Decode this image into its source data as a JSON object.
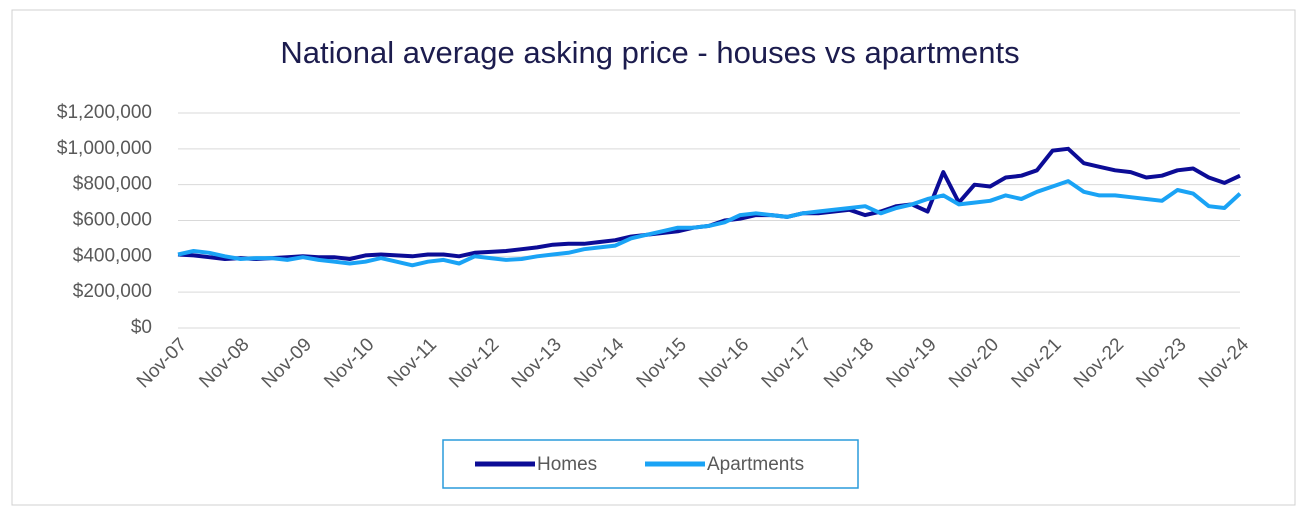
{
  "chart_data": {
    "type": "line",
    "title": "National average asking price - houses vs apartments",
    "categories": [
      "Nov-07",
      null,
      null,
      null,
      "Nov-08",
      null,
      null,
      null,
      "Nov-09",
      null,
      null,
      null,
      "Nov-10",
      null,
      null,
      null,
      "Nov-11",
      null,
      null,
      null,
      "Nov-12",
      null,
      null,
      null,
      "Nov-13",
      null,
      null,
      null,
      "Nov-14",
      null,
      null,
      null,
      "Nov-15",
      null,
      null,
      null,
      "Nov-16",
      null,
      null,
      null,
      "Nov-17",
      null,
      null,
      null,
      "Nov-18",
      null,
      null,
      null,
      "Nov-19",
      null,
      null,
      null,
      "Nov-20",
      null,
      null,
      null,
      "Nov-21",
      null,
      null,
      null,
      "Nov-22",
      null,
      null,
      null,
      "Nov-23",
      null,
      null,
      null,
      "Nov-24"
    ],
    "series": [
      {
        "name": "Homes",
        "color": "#0c0c96",
        "values": [
          410000,
          405000,
          395000,
          385000,
          390000,
          385000,
          390000,
          395000,
          400000,
          395000,
          395000,
          385000,
          405000,
          410000,
          405000,
          400000,
          410000,
          410000,
          400000,
          420000,
          425000,
          430000,
          440000,
          450000,
          465000,
          470000,
          470000,
          480000,
          490000,
          510000,
          520000,
          530000,
          540000,
          560000,
          570000,
          600000,
          610000,
          630000,
          630000,
          620000,
          640000,
          640000,
          650000,
          660000,
          630000,
          650000,
          680000,
          690000,
          650000,
          870000,
          700000,
          800000,
          790000,
          840000,
          850000,
          880000,
          990000,
          1000000,
          920000,
          900000,
          880000,
          870000,
          840000,
          850000,
          880000,
          890000,
          840000,
          810000,
          850000
        ]
      },
      {
        "name": "Apartments",
        "color": "#1aa3f5",
        "values": [
          410000,
          430000,
          420000,
          400000,
          385000,
          390000,
          390000,
          380000,
          395000,
          380000,
          370000,
          360000,
          370000,
          390000,
          370000,
          350000,
          370000,
          380000,
          360000,
          400000,
          390000,
          380000,
          385000,
          400000,
          410000,
          420000,
          440000,
          450000,
          460000,
          500000,
          520000,
          540000,
          560000,
          560000,
          570000,
          590000,
          630000,
          640000,
          630000,
          620000,
          640000,
          650000,
          660000,
          670000,
          680000,
          640000,
          670000,
          690000,
          720000,
          740000,
          690000,
          700000,
          710000,
          740000,
          720000,
          760000,
          790000,
          820000,
          760000,
          740000,
          740000,
          730000,
          720000,
          710000,
          770000,
          750000,
          680000,
          670000,
          750000
        ]
      }
    ],
    "ylim": [
      0,
      1200000
    ],
    "yticks": [
      {
        "value": 0,
        "label": "$0"
      },
      {
        "value": 200000,
        "label": "$200,000"
      },
      {
        "value": 400000,
        "label": "$400,000"
      },
      {
        "value": 600000,
        "label": "$600,000"
      },
      {
        "value": 800000,
        "label": "$800,000"
      },
      {
        "value": 1000000,
        "label": "$1,000,000"
      },
      {
        "value": 1200000,
        "label": "$1,200,000"
      }
    ],
    "grid": true,
    "legend": "bottom"
  }
}
